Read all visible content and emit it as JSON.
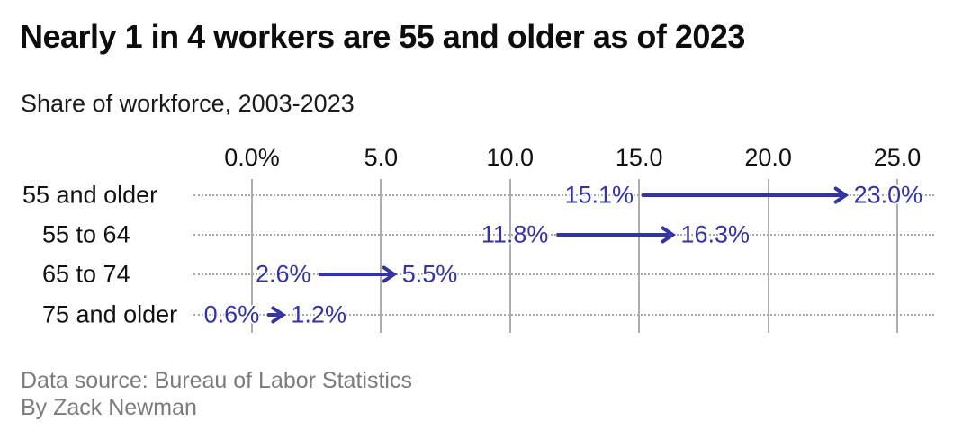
{
  "title": "Nearly 1 in 4 workers are 55 and older as of 2023",
  "subtitle": "Share of workforce, 2003-2023",
  "footer": {
    "source": "Data source: Bureau of Labor Statistics",
    "byline": "By Zack Newman"
  },
  "colors": {
    "arrow": "#3333a3",
    "grid": "#aeaeae",
    "dotted": "#a6a6a6",
    "title": "#0d0d0d",
    "text": "#111111",
    "muted": "#7b7b7b"
  },
  "chart_data": {
    "type": "arrow",
    "title": "Nearly 1 in 4 workers are 55 and older as of 2023",
    "subtitle": "Share of workforce, 2003-2023",
    "unit": "%",
    "period": {
      "from": "2003",
      "to": "2023"
    },
    "x_axis": {
      "min": 0,
      "max": 25,
      "grid": true,
      "ticks": [
        {
          "value": 0,
          "label": "0.0%"
        },
        {
          "value": 5,
          "label": "5.0"
        },
        {
          "value": 10,
          "label": "10.0"
        },
        {
          "value": 15,
          "label": "15.0"
        },
        {
          "value": 20,
          "label": "20.0"
        },
        {
          "value": 25,
          "label": "25.0"
        }
      ]
    },
    "rows": [
      {
        "label": "55 and older",
        "indent": 0,
        "start": 15.1,
        "end": 23.0,
        "start_label": "15.1%",
        "end_label": "23.0%"
      },
      {
        "label": "55 to 64",
        "indent": 1,
        "start": 11.8,
        "end": 16.3,
        "start_label": "11.8%",
        "end_label": "16.3%"
      },
      {
        "label": "65 to 74",
        "indent": 1,
        "start": 2.6,
        "end": 5.5,
        "start_label": "2.6%",
        "end_label": "5.5%"
      },
      {
        "label": "75 and older",
        "indent": 1,
        "start": 0.6,
        "end": 1.2,
        "start_label": "0.6%",
        "end_label": "1.2%"
      }
    ]
  }
}
